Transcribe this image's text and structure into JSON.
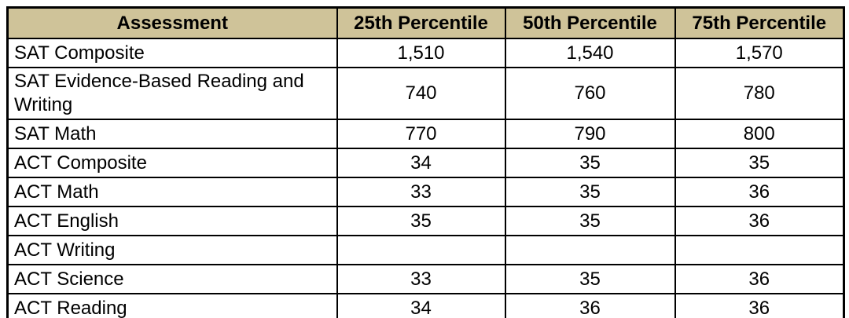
{
  "colors": {
    "header_bg": "#cfc399",
    "border": "#000000",
    "text": "#000000",
    "page_bg": "#ffffff"
  },
  "table": {
    "columns": [
      "Assessment",
      "25th Percentile",
      "50th Percentile",
      "75th Percentile"
    ],
    "rows": [
      [
        "SAT Composite",
        "1,510",
        "1,540",
        "1,570"
      ],
      [
        "SAT Evidence-Based Reading and Writing",
        "740",
        "760",
        "780"
      ],
      [
        "SAT Math",
        "770",
        "790",
        "800"
      ],
      [
        "ACT Composite",
        "34",
        "35",
        "35"
      ],
      [
        "ACT Math",
        "33",
        "35",
        "36"
      ],
      [
        "ACT English",
        "35",
        "35",
        "36"
      ],
      [
        "ACT Writing",
        "",
        "",
        ""
      ],
      [
        "ACT Science",
        "33",
        "35",
        "36"
      ],
      [
        "ACT Reading",
        "34",
        "36",
        "36"
      ]
    ]
  }
}
